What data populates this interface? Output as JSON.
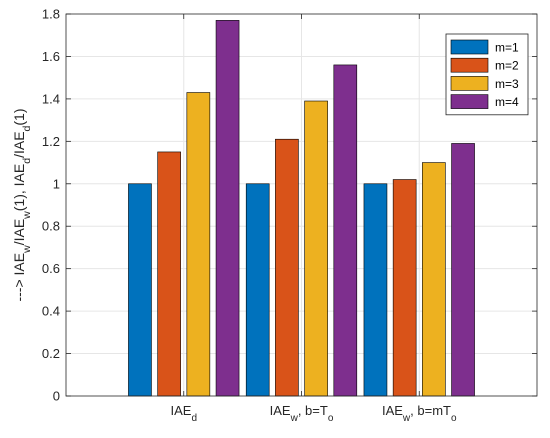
{
  "chart_data": {
    "type": "bar",
    "categories": [
      {
        "base": "IAE",
        "sub": "d",
        "suffix": ""
      },
      {
        "base": "IAE",
        "sub": "w",
        "suffix": ", b=T",
        "suffix_sub": "o"
      },
      {
        "base": "IAE",
        "sub": "w",
        "suffix": ", b=mT",
        "suffix_sub": "o"
      }
    ],
    "series": [
      {
        "name": "m=1",
        "color": "#0072BD",
        "values": [
          1.0,
          1.0,
          1.0
        ]
      },
      {
        "name": "m=2",
        "color": "#D95319",
        "values": [
          1.15,
          1.21,
          1.02
        ]
      },
      {
        "name": "m=3",
        "color": "#EDB120",
        "values": [
          1.43,
          1.39,
          1.1
        ]
      },
      {
        "name": "m=4",
        "color": "#7E2F8E",
        "values": [
          1.77,
          1.56,
          1.19
        ]
      }
    ],
    "ylim": [
      0,
      1.8
    ],
    "yticks": [
      "0",
      "0.2",
      "0.4",
      "0.6",
      "0.8",
      "1",
      "1.2",
      "1.4",
      "1.6",
      "1.8"
    ],
    "ylabel": {
      "parts": [
        {
          "t": "---> IAE"
        },
        {
          "t": "w",
          "sub": true
        },
        {
          "t": "/IAE"
        },
        {
          "t": "w",
          "sub": true
        },
        {
          "t": "(1), IAE"
        },
        {
          "t": "d",
          "sub": true
        },
        {
          "t": "/IAE"
        },
        {
          "t": "d",
          "sub": true
        },
        {
          "t": "(1)"
        }
      ]
    },
    "legend_position": "top-right",
    "grid": true
  }
}
